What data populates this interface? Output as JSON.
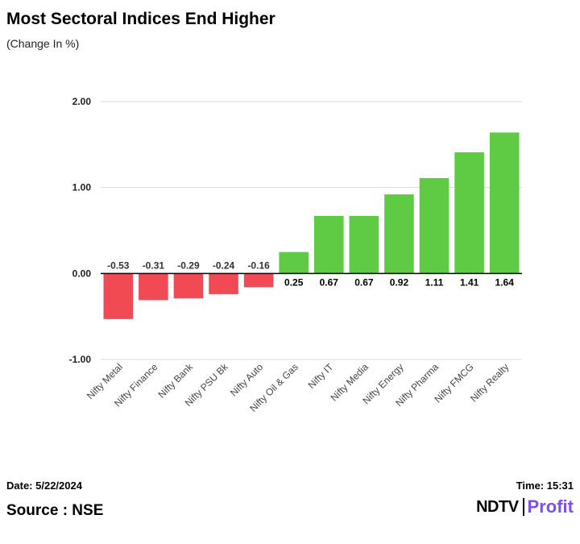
{
  "title": "Most Sectoral Indices End Higher",
  "subtitle": "(Change In %)",
  "footer": {
    "date": "Date: 5/22/2024",
    "time": "Time: 15:31",
    "source": "Source : NSE"
  },
  "logo": {
    "brand": "NDTV",
    "product": "Profit"
  },
  "colors": {
    "positive": "#5fcb44",
    "negative": "#f14a55",
    "grid": "#d9d9d9",
    "axis": "#000000",
    "logo_profit": "#7b4ff0"
  },
  "chart_data": {
    "type": "bar",
    "title": "Most Sectoral Indices End Higher",
    "subtitle": "(Change In %)",
    "categories": [
      "Nifty Metal",
      "Nifty Finance",
      "Nifty Bank",
      "Nifty PSU Bk",
      "Nifty Auto",
      "Nifty Oil & Gas",
      "Nifty IT",
      "Nifty Media",
      "Nifty Energy",
      "Nifty Pharma",
      "Nifty FMCG",
      "Nifty Realty"
    ],
    "values": [
      -0.53,
      -0.31,
      -0.29,
      -0.24,
      -0.16,
      0.25,
      0.67,
      0.67,
      0.92,
      1.11,
      1.41,
      1.64
    ],
    "value_labels": [
      "-0.53",
      "-0.31",
      "-0.29",
      "-0.24",
      "-0.16",
      "0.25",
      "0.67",
      "0.67",
      "0.92",
      "1.11",
      "1.41",
      "1.64"
    ],
    "ylim": [
      -1,
      2
    ],
    "yticks": [
      2,
      1,
      0,
      -1
    ],
    "ytick_labels": [
      "2.00",
      "1.00",
      "0.00",
      "-1.00"
    ],
    "grid": true,
    "legend": "none"
  }
}
